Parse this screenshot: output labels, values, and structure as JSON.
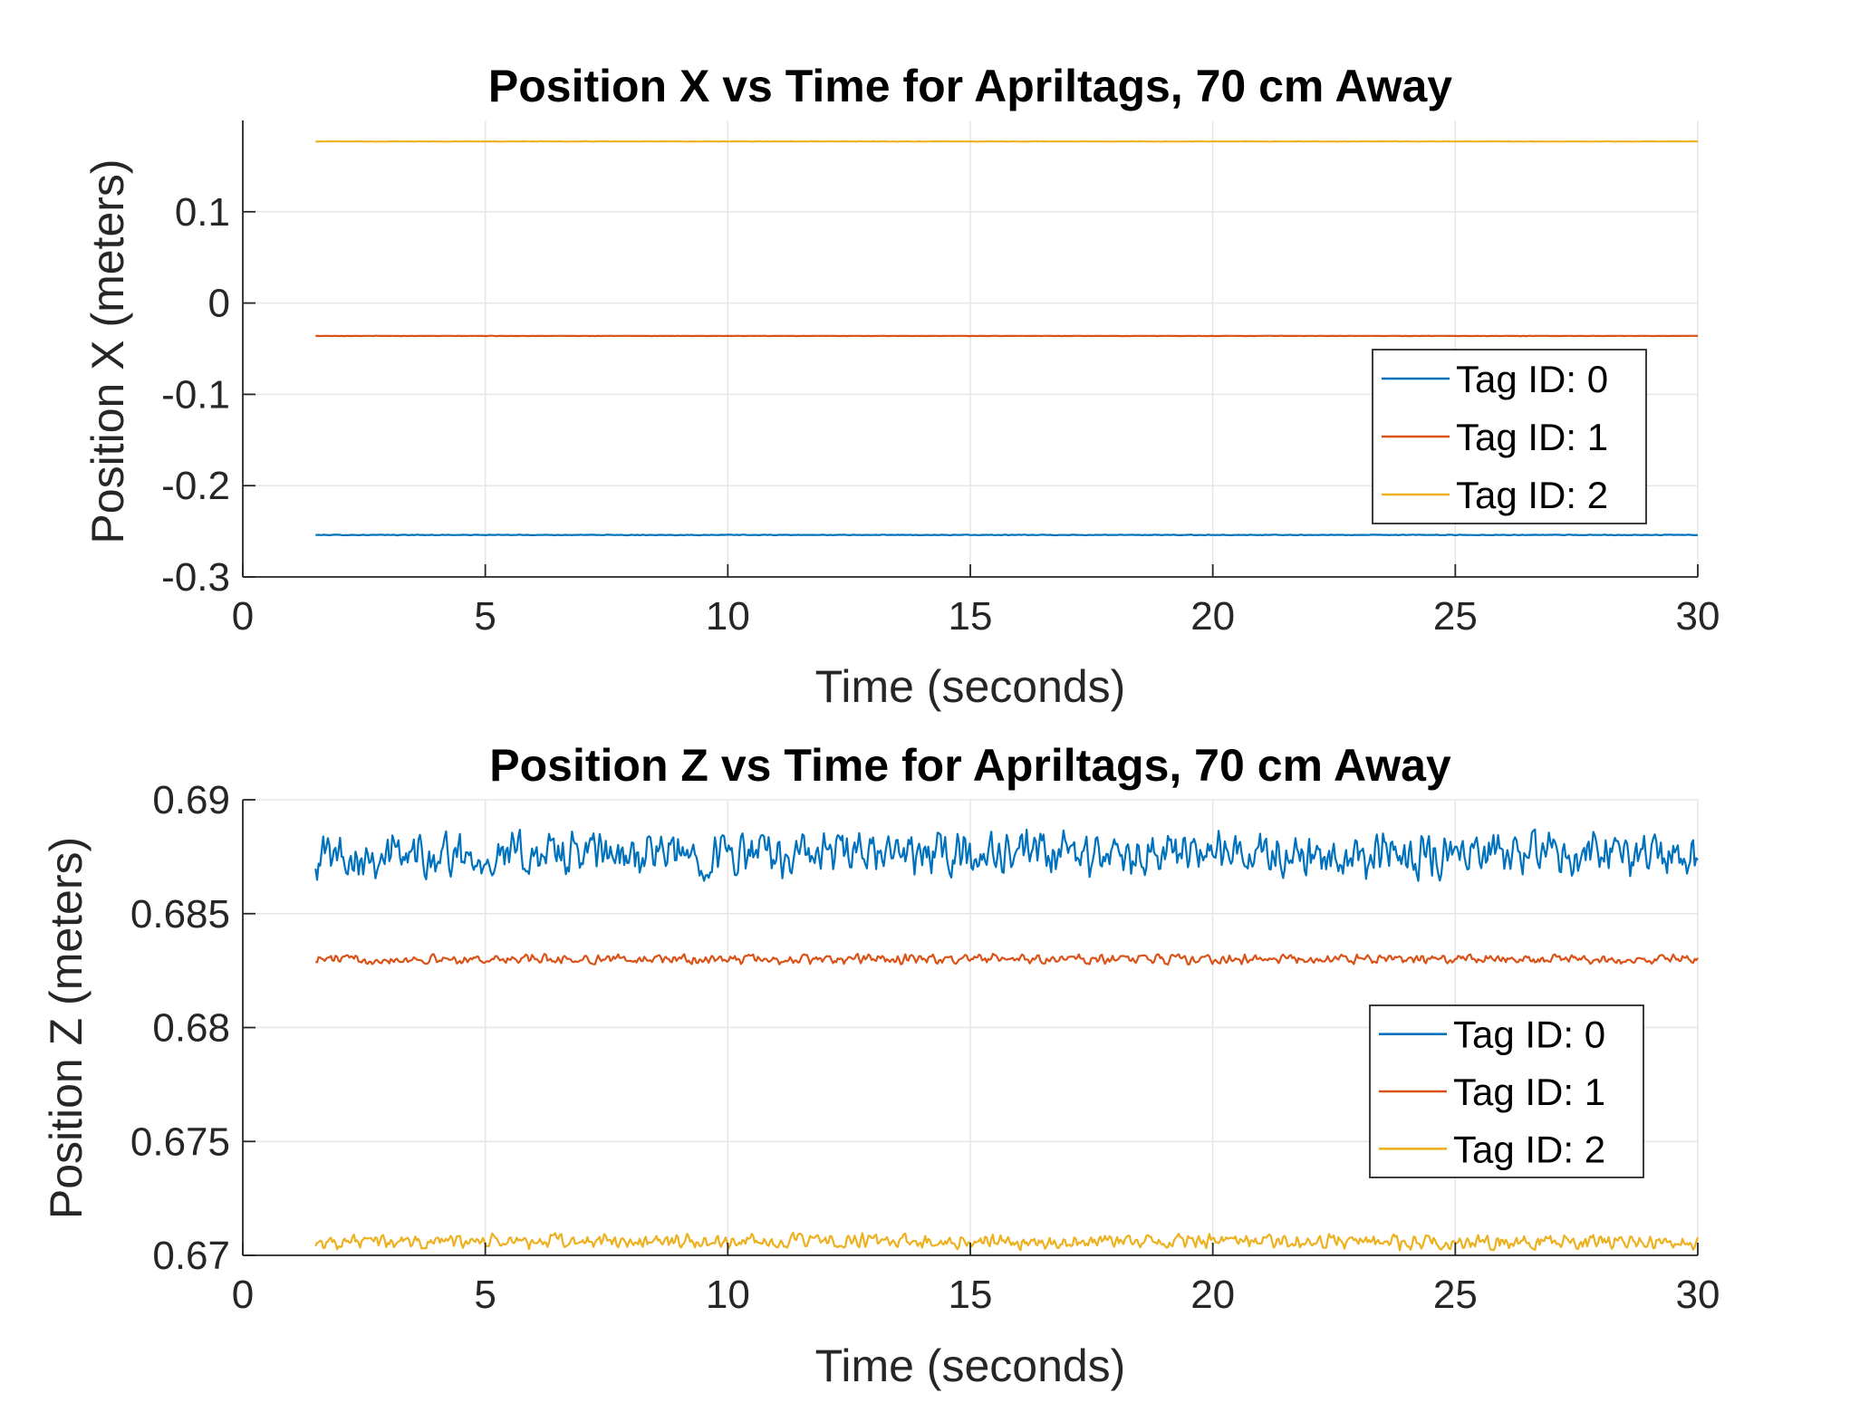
{
  "chart_data": [
    {
      "type": "line",
      "title": "Position X vs Time for Apriltags, 70 cm Away",
      "xlabel": "Time (seconds)",
      "ylabel": "Position X (meters)",
      "xlim": [
        0,
        30
      ],
      "ylim": [
        -0.3,
        0.2
      ],
      "xticks": [
        0,
        5,
        10,
        15,
        20,
        25,
        30
      ],
      "xtick_labels": [
        "0",
        "5",
        "10",
        "15",
        "20",
        "25",
        "30"
      ],
      "yticks": [
        -0.3,
        -0.2,
        -0.1,
        0,
        0.1
      ],
      "ytick_labels": [
        "-0.3",
        "-0.2",
        "-0.1",
        "0",
        "0.1"
      ],
      "grid": true,
      "legend_position": "right",
      "x_start": 1.5,
      "x_end": 30,
      "series": [
        {
          "name": "Tag ID: 0",
          "color": "#0072BD",
          "mean": -0.254,
          "noise": 0.0004
        },
        {
          "name": "Tag ID: 1",
          "color": "#D95319",
          "mean": -0.036,
          "noise": 0.0002
        },
        {
          "name": "Tag ID: 2",
          "color": "#EDB120",
          "mean": 0.177,
          "noise": 0.0002
        }
      ]
    },
    {
      "type": "line",
      "title": "Position Z vs Time for Apriltags, 70 cm Away",
      "xlabel": "Time (seconds)",
      "ylabel": "Position Z (meters)",
      "xlim": [
        0,
        30
      ],
      "ylim": [
        0.67,
        0.69
      ],
      "xticks": [
        0,
        5,
        10,
        15,
        20,
        25,
        30
      ],
      "xtick_labels": [
        "0",
        "5",
        "10",
        "15",
        "20",
        "25",
        "30"
      ],
      "yticks": [
        0.67,
        0.675,
        0.68,
        0.685,
        0.69
      ],
      "ytick_labels": [
        "0.67",
        "0.675",
        "0.68",
        "0.685",
        "0.69"
      ],
      "grid": true,
      "legend_position": "right",
      "x_start": 1.5,
      "x_end": 30,
      "series": [
        {
          "name": "Tag ID: 0",
          "color": "#0072BD",
          "mean": 0.6876,
          "noise": 0.0012
        },
        {
          "name": "Tag ID: 1",
          "color": "#D95319",
          "mean": 0.683,
          "noise": 0.00025
        },
        {
          "name": "Tag ID: 2",
          "color": "#EDB120",
          "mean": 0.6706,
          "noise": 0.0004
        }
      ]
    }
  ]
}
